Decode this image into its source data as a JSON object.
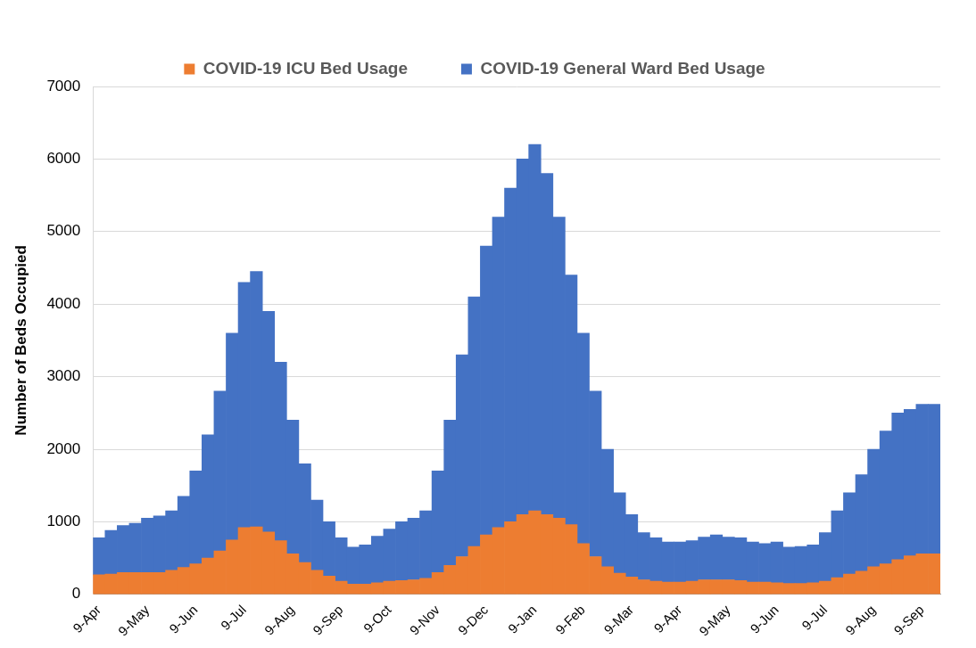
{
  "chart_data": {
    "type": "bar",
    "stacked": true,
    "legend": "top",
    "grid": true,
    "y_label": "Number of Beds Occupied",
    "categories": [
      "9-Apr",
      null,
      null,
      null,
      "9-May",
      null,
      null,
      null,
      "9-Jun",
      null,
      null,
      null,
      "9-Jul",
      null,
      null,
      null,
      "9-Aug",
      null,
      null,
      null,
      "9-Sep",
      null,
      null,
      null,
      "9-Oct",
      null,
      null,
      null,
      "9-Nov",
      null,
      null,
      null,
      "9-Dec",
      null,
      null,
      null,
      "9-Jan",
      null,
      null,
      null,
      "9-Feb",
      null,
      null,
      null,
      "9-Mar",
      null,
      null,
      null,
      "9-Apr",
      null,
      null,
      null,
      "9-May",
      null,
      null,
      null,
      "9-Jun",
      null,
      null,
      null,
      "9-Jul",
      null,
      null,
      null,
      "9-Aug",
      null,
      null,
      null,
      "9-Sep",
      null
    ],
    "series": [
      {
        "name": "COVID-19 ICU Bed Usage",
        "color": "#ed7d31",
        "values": [
          270,
          280,
          300,
          300,
          300,
          300,
          330,
          370,
          420,
          500,
          600,
          750,
          920,
          930,
          860,
          740,
          560,
          440,
          330,
          250,
          180,
          140,
          140,
          160,
          180,
          190,
          200,
          220,
          300,
          400,
          520,
          660,
          820,
          920,
          1000,
          1100,
          1150,
          1100,
          1050,
          960,
          700,
          520,
          380,
          290,
          240,
          200,
          180,
          170,
          170,
          180,
          200,
          200,
          200,
          190,
          170,
          170,
          160,
          150,
          150,
          160,
          180,
          230,
          280,
          320,
          380,
          420,
          480,
          530,
          560,
          560
        ]
      },
      {
        "name": "COVID-19 General Ward Bed Usage",
        "color": "#4472c4",
        "values": [
          510,
          600,
          650,
          680,
          750,
          780,
          820,
          980,
          1280,
          1700,
          2200,
          2850,
          3380,
          3520,
          3040,
          2460,
          1840,
          1360,
          970,
          750,
          600,
          510,
          540,
          640,
          720,
          810,
          850,
          930,
          1400,
          2000,
          2780,
          3440,
          3980,
          4280,
          4600,
          4900,
          5050,
          4700,
          4150,
          3440,
          2900,
          2280,
          1620,
          1110,
          860,
          650,
          600,
          550,
          550,
          560,
          590,
          620,
          590,
          590,
          550,
          530,
          560,
          500,
          510,
          520,
          670,
          920,
          1120,
          1330,
          1620,
          1830,
          2020,
          2020,
          2060,
          2060
        ]
      }
    ],
    "ylim": [
      0,
      7000
    ],
    "yticks": [
      0,
      1000,
      2000,
      3000,
      4000,
      5000,
      6000,
      7000
    ]
  }
}
